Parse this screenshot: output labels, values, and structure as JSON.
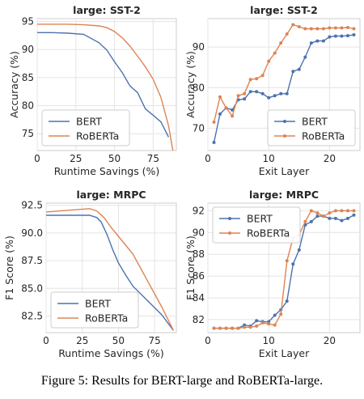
{
  "caption": "Figure 5: Results for BERT-large and RoBERTa-large.",
  "colors": {
    "BERT": "#4c72b0",
    "RoBERTa": "#dd8452"
  },
  "chart_data": [
    {
      "type": "line",
      "title": "large: SST-2",
      "xlabel": "Runtime Savings (%)",
      "ylabel": "Accuracy (%)",
      "xlim": [
        0,
        90
      ],
      "ylim": [
        72,
        95.5
      ],
      "xticks": [
        0,
        25,
        50,
        75
      ],
      "yticks": [
        75,
        80,
        85,
        90,
        95
      ],
      "grid": true,
      "legend": "lower-left",
      "series": [
        {
          "name": "BERT",
          "markers": false,
          "x": [
            0,
            10,
            20,
            30,
            40,
            45,
            50,
            55,
            60,
            65,
            70,
            75,
            80,
            85
          ],
          "y": [
            93.0,
            93.0,
            92.9,
            92.7,
            91.2,
            89.9,
            87.8,
            85.9,
            83.5,
            82.3,
            79.4,
            78.3,
            77.1,
            74.4
          ]
        },
        {
          "name": "RoBERTa",
          "markers": false,
          "x": [
            0,
            10,
            20,
            30,
            40,
            45,
            50,
            55,
            60,
            65,
            70,
            75,
            80,
            85,
            88
          ],
          "y": [
            94.5,
            94.5,
            94.5,
            94.4,
            94.2,
            93.9,
            93.2,
            92.1,
            90.6,
            88.8,
            86.9,
            84.7,
            81.5,
            76.4,
            71.6
          ]
        }
      ]
    },
    {
      "type": "line",
      "title": "large: SST-2",
      "xlabel": "Exit Layer",
      "ylabel": "Accuracy (%)",
      "xlim": [
        0,
        25
      ],
      "ylim": [
        64.5,
        97
      ],
      "xticks": [
        0,
        10,
        20
      ],
      "yticks": [
        70,
        80,
        90
      ],
      "grid": true,
      "legend": "lower-right",
      "series": [
        {
          "name": "BERT",
          "markers": true,
          "x": [
            1,
            2,
            3,
            4,
            5,
            6,
            7,
            8,
            9,
            10,
            11,
            12,
            13,
            14,
            15,
            16,
            17,
            18,
            19,
            20,
            21,
            22,
            23,
            24
          ],
          "y": [
            66.5,
            73.5,
            75.0,
            74.5,
            77.0,
            77.2,
            79.0,
            79.0,
            78.5,
            77.5,
            78.0,
            78.5,
            78.5,
            84.0,
            84.5,
            87.5,
            91.0,
            91.5,
            91.5,
            92.5,
            92.7,
            92.7,
            92.8,
            93.0
          ]
        },
        {
          "name": "RoBERTa",
          "markers": true,
          "x": [
            1,
            2,
            3,
            4,
            5,
            6,
            7,
            8,
            9,
            10,
            11,
            12,
            13,
            14,
            15,
            16,
            17,
            18,
            19,
            20,
            21,
            22,
            23,
            24
          ],
          "y": [
            71.5,
            77.7,
            75.0,
            73.0,
            78.0,
            78.5,
            82.0,
            82.2,
            83.0,
            86.5,
            88.5,
            91.0,
            93.2,
            95.5,
            95.0,
            94.5,
            94.5,
            94.5,
            94.5,
            94.7,
            94.7,
            94.7,
            94.8,
            94.5
          ]
        }
      ]
    },
    {
      "type": "line",
      "title": "large: MRPC",
      "xlabel": "Runtime Savings (%)",
      "ylabel": "F1 Score (%)",
      "xlim": [
        0,
        90
      ],
      "ylim": [
        81.0,
        92.7
      ],
      "xticks": [
        0,
        25,
        50,
        75
      ],
      "yticks": [
        82.5,
        85.0,
        87.5,
        90.0,
        92.5
      ],
      "grid": true,
      "legend": "lower-left",
      "series": [
        {
          "name": "BERT",
          "markers": false,
          "x": [
            0,
            10,
            20,
            30,
            35,
            38,
            42,
            46,
            50,
            55,
            60,
            70,
            80,
            88
          ],
          "y": [
            91.6,
            91.6,
            91.6,
            91.6,
            91.4,
            91.0,
            89.9,
            88.5,
            87.3,
            86.2,
            85.2,
            83.9,
            82.6,
            81.2
          ]
        },
        {
          "name": "RoBERTa",
          "markers": false,
          "x": [
            0,
            10,
            20,
            30,
            35,
            40,
            45,
            50,
            55,
            60,
            70,
            80,
            88
          ],
          "y": [
            91.9,
            92.0,
            92.1,
            92.2,
            92.0,
            91.4,
            90.5,
            89.7,
            88.9,
            88.1,
            85.7,
            83.3,
            81.2
          ]
        }
      ]
    },
    {
      "type": "line",
      "title": "large: MRPC",
      "xlabel": "Exit Layer",
      "ylabel": "F1 Score (%)",
      "xlim": [
        0,
        25
      ],
      "ylim": [
        80.8,
        92.7
      ],
      "xticks": [
        0,
        10,
        20
      ],
      "yticks": [
        82,
        84,
        86,
        88,
        90,
        92
      ],
      "grid": true,
      "legend": "upper-left",
      "series": [
        {
          "name": "BERT",
          "markers": true,
          "x": [
            1,
            2,
            3,
            4,
            5,
            6,
            7,
            8,
            9,
            10,
            11,
            12,
            13,
            14,
            15,
            16,
            17,
            18,
            19,
            20,
            21,
            22,
            23,
            24
          ],
          "y": [
            81.2,
            81.2,
            81.2,
            81.2,
            81.2,
            81.5,
            81.4,
            81.9,
            81.8,
            81.8,
            82.4,
            82.9,
            83.7,
            87.1,
            88.4,
            90.7,
            91.0,
            91.5,
            91.5,
            91.3,
            91.3,
            91.1,
            91.3,
            91.6
          ]
        },
        {
          "name": "RoBERTa",
          "markers": true,
          "x": [
            1,
            2,
            3,
            4,
            5,
            6,
            7,
            8,
            9,
            10,
            11,
            12,
            13,
            14,
            15,
            16,
            17,
            18,
            19,
            20,
            21,
            22,
            23,
            24
          ],
          "y": [
            81.2,
            81.2,
            81.2,
            81.2,
            81.2,
            81.3,
            81.3,
            81.4,
            81.7,
            81.6,
            81.5,
            82.5,
            87.4,
            89.5,
            89.8,
            91.0,
            92.0,
            91.8,
            91.5,
            91.8,
            92.0,
            92.0,
            92.0,
            92.0
          ]
        }
      ]
    }
  ]
}
